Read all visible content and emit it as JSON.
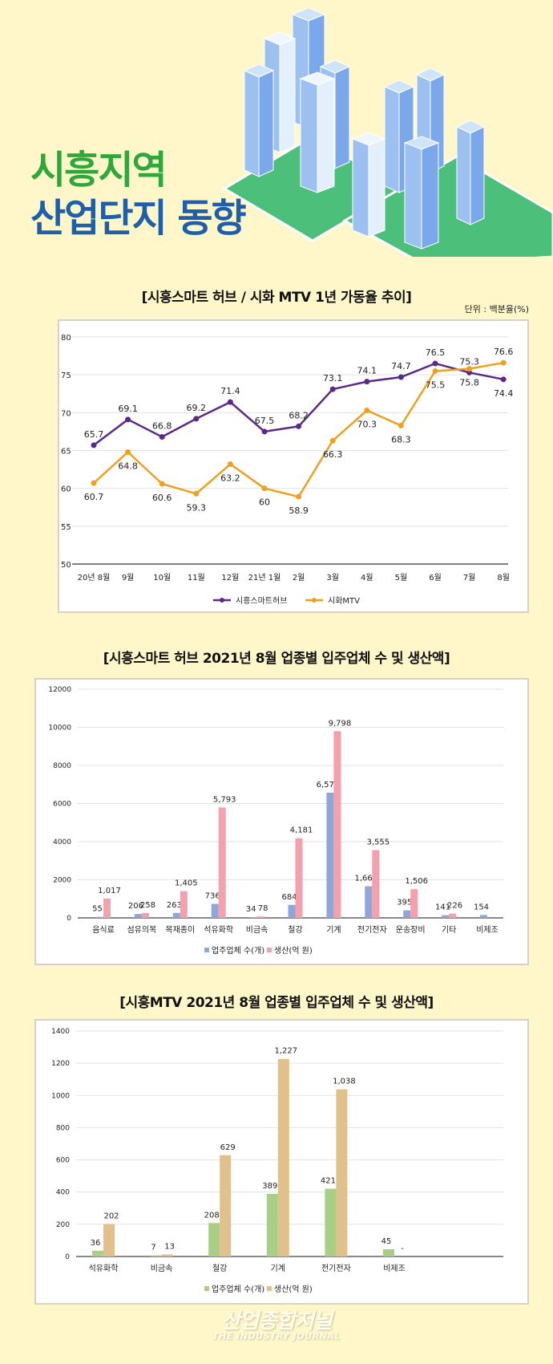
{
  "header": {
    "title_line1": "시흥지역",
    "title_line2": "산업단지 동향"
  },
  "colors": {
    "background": "#fff7c9",
    "title_green": "#2ea83a",
    "title_blue": "#1f5ea8"
  },
  "chart_data": [
    {
      "type": "line",
      "title": "[시흥스마트 허브 / 시화 MTV 1년 가동율 추이]",
      "unit_note": "단위 : 백분율(%)",
      "categories": [
        "20년 8월",
        "9월",
        "10월",
        "11월",
        "12월",
        "21년 1월",
        "2월",
        "3월",
        "4월",
        "5월",
        "6월",
        "7월",
        "8월"
      ],
      "ylim": [
        50,
        80
      ],
      "yticks": [
        50,
        55,
        60,
        65,
        70,
        75,
        80
      ],
      "grid": true,
      "legend": "bottom",
      "series": [
        {
          "name": "시흥스마트허브",
          "color": "#5b2a86",
          "values": [
            65.7,
            69.1,
            66.8,
            69.2,
            71.4,
            67.5,
            68.2,
            73.1,
            74.1,
            74.7,
            76.5,
            75.3,
            74.4
          ]
        },
        {
          "name": "시화MTV",
          "color": "#f0a020",
          "values": [
            60.7,
            64.8,
            60.6,
            59.3,
            63.2,
            60,
            58.9,
            66.3,
            70.3,
            68.3,
            75.5,
            75.8,
            76.6
          ]
        }
      ]
    },
    {
      "type": "bar",
      "title": "[시흥스마트 허브 2021년 8월 업종별 입주업체 수 및 생산액]",
      "categories": [
        "음식료",
        "섬유의복",
        "목재종이",
        "석유화학",
        "비금속",
        "철강",
        "기계",
        "전기전자",
        "운송장비",
        "기타",
        "비제조"
      ],
      "ylim": [
        0,
        12000
      ],
      "yticks": [
        0,
        2000,
        4000,
        6000,
        8000,
        10000,
        12000
      ],
      "grid": true,
      "legend": "bottom",
      "series": [
        {
          "name": "업주업체 수(개)",
          "color": "#8fa6d9",
          "values": [
            55,
            206,
            263,
            736,
            34,
            684,
            6572,
            1661,
            395,
            141,
            154
          ],
          "labels": [
            "55",
            "206",
            "263",
            "736",
            "34",
            "684",
            "6,572",
            "1,661",
            "395",
            "141",
            "154"
          ]
        },
        {
          "name": "생산(억 원)",
          "color": "#f4a1ad",
          "values": [
            1017,
            258,
            1405,
            5793,
            78,
            4181,
            9798,
            3555,
            1506,
            226,
            null
          ],
          "labels": [
            "1,017",
            "258",
            "1,405",
            "5,793",
            "78",
            "4,181",
            "9,798",
            "3,555",
            "1,506",
            "226",
            ""
          ]
        }
      ]
    },
    {
      "type": "bar",
      "title": "[시흥MTV 2021년 8월 업종별 입주업체 수 및 생산액]",
      "categories": [
        "석유화학",
        "비금속",
        "철강",
        "기계",
        "전기전자",
        "비제조"
      ],
      "ylim": [
        0,
        1400
      ],
      "yticks": [
        0,
        200,
        400,
        600,
        800,
        1000,
        1200,
        1400
      ],
      "grid": true,
      "legend": "bottom",
      "series": [
        {
          "name": "업주업체 수(개)",
          "color": "#a9cf86",
          "values": [
            36,
            7,
            208,
            389,
            421,
            45
          ],
          "labels": [
            "36",
            "7",
            "208",
            "389",
            "421",
            "45"
          ]
        },
        {
          "name": "생산(억 원)",
          "color": "#e0c08b",
          "values": [
            202,
            13,
            629,
            1227,
            1038,
            null
          ],
          "labels": [
            "202",
            "13",
            "629",
            "1,227",
            "1,038",
            "-"
          ]
        }
      ]
    }
  ],
  "footer": {
    "logo_korean": "산업종합저널",
    "logo_english": "THE INDUSTRY JOURNAL"
  }
}
